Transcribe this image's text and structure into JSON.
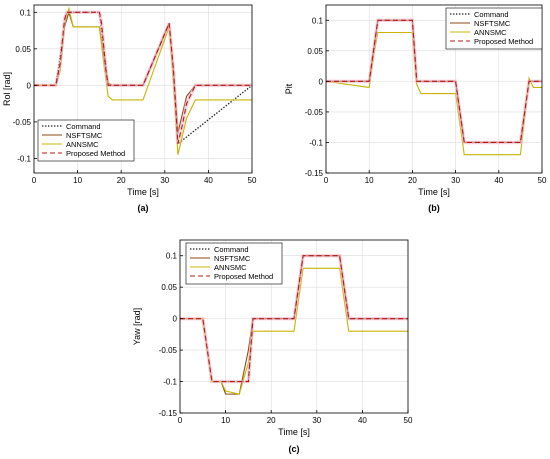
{
  "colors": {
    "command": "#1a1a1a",
    "nsftsmc": "#8b4a12",
    "annsmc": "#c8b400",
    "proposed": "#b01818",
    "proposed_halo": "#f2b8c8",
    "axis": "#000000",
    "grid": "#dcdcdc"
  },
  "chart_data": [
    {
      "type": "line",
      "panel_label": "(a)",
      "xlabel": "Time [s]",
      "ylabel": "Rol [rad]",
      "xlim": [
        0,
        50
      ],
      "ylim": [
        -0.12,
        0.11
      ],
      "xticks": [
        0,
        10,
        20,
        30,
        40,
        50
      ],
      "xtick_labels": [
        "0",
        "10",
        "20",
        "30",
        "40",
        "50"
      ],
      "yticks": [
        -0.1,
        -0.05,
        0,
        0.05,
        0.1
      ],
      "ytick_labels": [
        "-0.1",
        "-0.05",
        "0",
        "0.05",
        "0.1"
      ],
      "grid": true,
      "legend_position": "bottom-left",
      "series": [
        {
          "name": "Command",
          "style": "dotted",
          "color_key": "command",
          "x": [
            0,
            5,
            7.5,
            15,
            17,
            25,
            31,
            33,
            50
          ],
          "y": [
            0,
            0,
            0.1,
            0.1,
            0,
            0,
            0.085,
            -0.08,
            0
          ]
        },
        {
          "name": "NSFTSMC",
          "style": "solid",
          "color_key": "nsftsmc",
          "x": [
            0,
            5,
            6,
            7,
            8,
            9,
            14.5,
            15,
            16,
            17,
            18,
            25,
            31,
            32,
            33,
            34,
            35,
            37,
            50
          ],
          "y": [
            0,
            0,
            0.02,
            0.08,
            0.1,
            0.08,
            0.08,
            0.08,
            0.04,
            0.003,
            0,
            0,
            0.085,
            0.02,
            -0.065,
            -0.04,
            -0.015,
            0,
            0
          ]
        },
        {
          "name": "ANNSMC",
          "style": "solid",
          "color_key": "annsmc",
          "x": [
            0,
            5,
            6,
            7,
            8,
            9,
            14.5,
            15,
            16,
            17,
            18,
            25,
            31,
            32,
            33,
            34,
            35,
            37,
            50
          ],
          "y": [
            0,
            0,
            0.02,
            0.085,
            0.105,
            0.08,
            0.08,
            0.08,
            0.03,
            -0.015,
            -0.02,
            -0.02,
            0.08,
            0.005,
            -0.095,
            -0.07,
            -0.045,
            -0.02,
            -0.02
          ]
        },
        {
          "name": "Proposed Method",
          "style": "dashed",
          "color_key": "proposed",
          "x": [
            0,
            5,
            6,
            7,
            7.5,
            8,
            15,
            15.5,
            16.5,
            17,
            25,
            31,
            32,
            33,
            34,
            35,
            37,
            50
          ],
          "y": [
            0,
            0,
            0.03,
            0.09,
            0.1,
            0.1,
            0.1,
            0.085,
            0.02,
            0,
            0,
            0.085,
            0.02,
            -0.08,
            -0.055,
            -0.025,
            0,
            0
          ]
        }
      ]
    },
    {
      "type": "line",
      "panel_label": "(b)",
      "xlabel": "Time [s]",
      "ylabel": "Pit",
      "xlim": [
        0,
        50
      ],
      "ylim": [
        -0.15,
        0.125
      ],
      "xticks": [
        0,
        10,
        20,
        30,
        40,
        50
      ],
      "xtick_labels": [
        "0",
        "10",
        "20",
        "30",
        "40",
        "50"
      ],
      "yticks": [
        -0.15,
        -0.1,
        -0.05,
        0,
        0.05,
        0.1
      ],
      "ytick_labels": [
        "-0.15",
        "-0.1",
        "-0.05",
        "0",
        "0.05",
        "0.1"
      ],
      "grid": true,
      "legend_position": "top-right",
      "series": [
        {
          "name": "Command",
          "style": "dotted",
          "color_key": "command",
          "x": [
            0,
            10,
            12,
            20,
            21,
            30,
            32,
            45,
            47,
            50
          ],
          "y": [
            0,
            0,
            0.1,
            0.1,
            0,
            0,
            -0.1,
            -0.1,
            0,
            0
          ]
        },
        {
          "name": "NSFTSMC",
          "style": "solid",
          "color_key": "nsftsmc",
          "x": [
            0,
            10,
            11,
            12,
            20,
            21,
            30,
            31,
            32,
            45,
            46,
            47,
            50
          ],
          "y": [
            0,
            0,
            0.05,
            0.1,
            0.1,
            0,
            0,
            -0.05,
            -0.1,
            -0.1,
            -0.05,
            0,
            0
          ]
        },
        {
          "name": "ANNSMC",
          "style": "solid",
          "color_key": "annsmc",
          "x": [
            0,
            10,
            11,
            12,
            20,
            21,
            22,
            30,
            31,
            32,
            45,
            46,
            47,
            48,
            50
          ],
          "y": [
            0,
            -0.01,
            0.04,
            0.08,
            0.08,
            -0.005,
            -0.02,
            -0.02,
            -0.07,
            -0.12,
            -0.12,
            -0.06,
            0.005,
            -0.01,
            -0.01
          ]
        },
        {
          "name": "Proposed Method",
          "style": "dashed",
          "color_key": "proposed",
          "x": [
            0,
            10,
            11,
            12,
            20,
            21,
            30,
            31,
            32,
            45,
            46,
            47,
            50
          ],
          "y": [
            0,
            0,
            0.05,
            0.1,
            0.1,
            0,
            0,
            -0.05,
            -0.1,
            -0.1,
            -0.05,
            0,
            0
          ]
        }
      ]
    },
    {
      "type": "line",
      "panel_label": "(c)",
      "xlabel": "Time [s]",
      "ylabel": "Yaw [rad]",
      "xlim": [
        0,
        50
      ],
      "ylim": [
        -0.15,
        0.125
      ],
      "xticks": [
        0,
        10,
        20,
        30,
        40,
        50
      ],
      "xtick_labels": [
        "0",
        "10",
        "20",
        "30",
        "40",
        "50"
      ],
      "yticks": [
        -0.15,
        -0.1,
        -0.05,
        0,
        0.05,
        0.1
      ],
      "ytick_labels": [
        "-0.15",
        "-0.1",
        "-0.05",
        "0",
        "0.05",
        "0.1"
      ],
      "grid": true,
      "legend_position": "top-left",
      "series": [
        {
          "name": "Command",
          "style": "dotted",
          "color_key": "command",
          "x": [
            0,
            5,
            7,
            15,
            16,
            25,
            27,
            35,
            37,
            50
          ],
          "y": [
            0,
            0,
            -0.1,
            -0.1,
            0,
            0,
            0.1,
            0.1,
            0,
            0
          ]
        },
        {
          "name": "NSFTSMC",
          "style": "solid",
          "color_key": "nsftsmc",
          "x": [
            0,
            5,
            6,
            7,
            9,
            10,
            13,
            15,
            16,
            17,
            25,
            26,
            27,
            35,
            36,
            37,
            50
          ],
          "y": [
            0,
            0,
            -0.05,
            -0.1,
            -0.1,
            -0.12,
            -0.12,
            -0.05,
            0,
            0,
            0,
            0.05,
            0.1,
            0.1,
            0.05,
            0,
            0
          ]
        },
        {
          "name": "ANNSMC",
          "style": "solid",
          "color_key": "annsmc",
          "x": [
            0,
            5,
            6,
            7,
            9,
            10,
            13,
            15,
            16,
            17,
            25,
            26,
            27,
            35,
            36,
            37,
            38,
            50
          ],
          "y": [
            0,
            0,
            -0.05,
            -0.1,
            -0.1,
            -0.115,
            -0.12,
            -0.07,
            -0.02,
            -0.02,
            -0.02,
            0.03,
            0.08,
            0.08,
            0.03,
            -0.02,
            -0.02,
            -0.02
          ]
        },
        {
          "name": "Proposed Method",
          "style": "dashed",
          "color_key": "proposed",
          "x": [
            0,
            5,
            6,
            7,
            15,
            16,
            25,
            26,
            27,
            35,
            36,
            37,
            50
          ],
          "y": [
            0,
            0,
            -0.05,
            -0.1,
            -0.1,
            0,
            0,
            0.05,
            0.1,
            0.1,
            0.05,
            0,
            0
          ]
        }
      ]
    }
  ]
}
